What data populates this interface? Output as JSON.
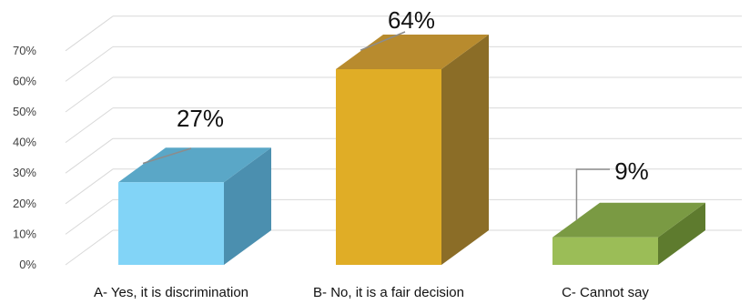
{
  "chart_data": {
    "type": "bar",
    "style": "3d-column",
    "title": "",
    "xlabel": "",
    "ylabel": "",
    "categories": [
      "A- Yes, it is discrimination",
      "B- No, it is a fair decision",
      "C- Cannot say"
    ],
    "values": [
      27,
      64,
      9
    ],
    "data_labels": [
      "27%",
      "64%",
      "9%"
    ],
    "ylim": [
      0,
      70
    ],
    "yticks": [
      0,
      10,
      20,
      30,
      40,
      50,
      60,
      70
    ],
    "ytick_labels": [
      "0%",
      "10%",
      "20%",
      "30%",
      "40%",
      "50%",
      "60%",
      "70%"
    ],
    "grid": true,
    "legend": "none",
    "colors": [
      {
        "front": "#82d4f7",
        "side": "#4b8faf",
        "top": "#5aa7c7"
      },
      {
        "front": "#e0ad26",
        "side": "#8b6d27",
        "top": "#b88b2e"
      },
      {
        "front": "#9bbd57",
        "side": "#5e7b2e",
        "top": "#7a9a43"
      }
    ],
    "grid_color": "#d9d9d9",
    "leader_line_color": "#8c8c8c"
  }
}
